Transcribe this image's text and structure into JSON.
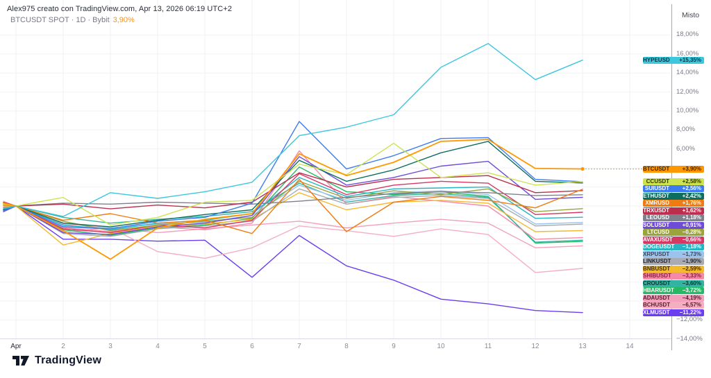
{
  "header": {
    "attribution": "Alex975 creato con TradingView.com, Apr 13, 2026 06:19 UTC+2",
    "symbol_line": "BTCUSDT SPOT · 1D · Bybit",
    "symbol_change": "3,90%"
  },
  "price_scale": {
    "mode_label": "Misto",
    "ticks": [
      {
        "label": "18,00%",
        "pct": 18
      },
      {
        "label": "16,00%",
        "pct": 16
      },
      {
        "label": "14,00%",
        "pct": 14
      },
      {
        "label": "12,00%",
        "pct": 12
      },
      {
        "label": "10,00%",
        "pct": 10
      },
      {
        "label": "8,00%",
        "pct": 8
      },
      {
        "label": "6,00%",
        "pct": 6
      },
      {
        "label": "−12,00%",
        "pct": -12
      },
      {
        "label": "−14,00%",
        "pct": -14
      }
    ]
  },
  "time_scale": {
    "labels": [
      {
        "label": "Apr",
        "day": 1,
        "emphasis": true
      },
      {
        "label": "2",
        "day": 2
      },
      {
        "label": "3",
        "day": 3
      },
      {
        "label": "4",
        "day": 4
      },
      {
        "label": "5",
        "day": 5
      },
      {
        "label": "6",
        "day": 6
      },
      {
        "label": "7",
        "day": 7
      },
      {
        "label": "8",
        "day": 8
      },
      {
        "label": "9",
        "day": 9
      },
      {
        "label": "10",
        "day": 10
      },
      {
        "label": "11",
        "day": 11
      },
      {
        "label": "12",
        "day": 12
      },
      {
        "label": "13",
        "day": 13
      },
      {
        "label": "14",
        "day": 14
      }
    ]
  },
  "footer": {
    "logo_text": "TradingView"
  },
  "chart_data": {
    "type": "line",
    "unit": "percent_change",
    "x_categories": [
      "Apr 1",
      "Apr 2",
      "Apr 3",
      "Apr 4",
      "Apr 5",
      "Apr 6",
      "Apr 7",
      "Apr 8",
      "Apr 9",
      "Apr 10",
      "Apr 11",
      "Apr 12",
      "Apr 13"
    ],
    "ylim": [
      -14,
      18
    ],
    "grid": true,
    "legend_position": "right-badges",
    "main_symbol": "BTCUSDT",
    "series": [
      {
        "name": "HYPEUSD",
        "change_label": "+15,35%",
        "end_pct": 15.35,
        "color": "#3bc7de",
        "text_color": "#06323b",
        "pre": -0.3,
        "values": [
          0,
          -1.1,
          1.4,
          0.8,
          1.5,
          2.5,
          7.4,
          8.3,
          9.6,
          14.6,
          17.1,
          13.3,
          15.35
        ]
      },
      {
        "name": "BTCUSDT",
        "change_label": "+3,90%",
        "end_pct": 3.9,
        "color": "#ff9800",
        "text_color": "#3a2500",
        "pre": 0.3,
        "values": [
          0,
          -2.6,
          -5.6,
          -2.3,
          -1.4,
          -0.8,
          5.5,
          3.2,
          4.6,
          6.8,
          7.0,
          3.95,
          3.9
        ]
      },
      {
        "name": "CCUSDT",
        "change_label": "+2,58%",
        "end_pct": 2.58,
        "color": "#cde34f",
        "text_color": "#2f3403",
        "pre": 0.2,
        "values": [
          0,
          0.9,
          -2.0,
          -1.2,
          0.4,
          0.6,
          4.4,
          3.3,
          6.6,
          3.0,
          3.5,
          2.2,
          2.58
        ]
      },
      {
        "name": "SUIUSDT",
        "change_label": "+2,56%",
        "end_pct": 2.56,
        "color": "#3d7bf0",
        "text_color": "#ffffff",
        "pre": -0.5,
        "values": [
          0,
          -2.2,
          -2.4,
          -1.6,
          -1.2,
          0.3,
          8.9,
          3.9,
          5.3,
          7.1,
          7.2,
          2.8,
          2.56
        ]
      },
      {
        "name": "ETHUSDT",
        "change_label": "+2,42%",
        "end_pct": 2.42,
        "color": "#0c6e5f",
        "text_color": "#ffffff",
        "pre": -0.4,
        "values": [
          0,
          -1.8,
          -2.2,
          -1.5,
          -0.9,
          -0.4,
          4.8,
          2.6,
          3.8,
          5.6,
          6.8,
          2.6,
          2.42
        ]
      },
      {
        "name": "XMRUSD",
        "change_label": "+1,76%",
        "end_pct": 1.76,
        "color": "#ef7c12",
        "text_color": "#ffffff",
        "pre": 0.1,
        "values": [
          0,
          -1.5,
          -0.8,
          -1.8,
          -1.5,
          -2.9,
          2.8,
          -2.7,
          0.4,
          1.0,
          0.6,
          -0.2,
          1.76
        ]
      },
      {
        "name": "TRXUSDT",
        "change_label": "+1,62%",
        "end_pct": 1.62,
        "color": "#bb2e4d",
        "text_color": "#ffffff",
        "pre": 0.4,
        "values": [
          0,
          0.2,
          -0.3,
          0.1,
          -0.2,
          0.4,
          3.5,
          2.0,
          2.8,
          3.0,
          3.2,
          1.4,
          1.62
        ]
      },
      {
        "name": "LEOUSD",
        "change_label": "+1,18%",
        "end_pct": 1.18,
        "color": "#7e818c",
        "text_color": "#ffffff",
        "pre": 0.1,
        "values": [
          0,
          0.3,
          0.2,
          0.4,
          0.3,
          0.2,
          0.5,
          0.9,
          1.3,
          1.5,
          1.4,
          1.1,
          1.18
        ]
      },
      {
        "name": "SOLUSDT",
        "change_label": "+0,91%",
        "end_pct": 0.91,
        "color": "#6f4bd8",
        "text_color": "#ffffff",
        "pre": -0.6,
        "values": [
          0,
          -2.8,
          -3.0,
          -2.2,
          -1.8,
          -1.0,
          5.2,
          2.2,
          3.0,
          4.2,
          4.7,
          0.7,
          0.91
        ]
      },
      {
        "name": "LTCUSD",
        "change_label": "−0,28%",
        "end_pct": -0.28,
        "color": "#9aa33c",
        "text_color": "#ffffff",
        "pre": -0.2,
        "values": [
          0,
          -1.6,
          -2.6,
          -2.0,
          -1.6,
          -1.2,
          2.6,
          0.8,
          1.6,
          1.2,
          1.8,
          -0.6,
          -0.28
        ]
      },
      {
        "name": "AVAXUSDT",
        "change_label": "−0,66%",
        "end_pct": -0.66,
        "color": "#d63864",
        "text_color": "#ffffff",
        "pre": -0.3,
        "values": [
          0,
          -2.4,
          -2.8,
          -2.0,
          -2.3,
          -1.5,
          3.4,
          1.2,
          2.2,
          2.6,
          2.4,
          -0.9,
          -0.66
        ]
      },
      {
        "name": "DOGEUSDT",
        "change_label": "−1,18%",
        "end_pct": -1.18,
        "color": "#27b5c4",
        "text_color": "#ffffff",
        "pre": -0.4,
        "values": [
          0,
          -2.0,
          -2.5,
          -1.8,
          -1.5,
          -0.8,
          3.0,
          1.0,
          1.8,
          1.9,
          2.0,
          -1.3,
          -1.18
        ]
      },
      {
        "name": "XRPUSDT",
        "change_label": "−1,73%",
        "end_pct": -1.73,
        "color": "#9cc3ee",
        "text_color": "#3c4754",
        "pre": -0.2,
        "values": [
          0,
          -2.1,
          -2.3,
          -1.9,
          -1.7,
          -1.0,
          2.2,
          0.6,
          1.4,
          1.6,
          1.2,
          -1.9,
          -1.73
        ]
      },
      {
        "name": "LINKUSDT",
        "change_label": "−1,90%",
        "end_pct": -1.9,
        "color": "#a8abb3",
        "text_color": "#26282e",
        "pre": -0.5,
        "values": [
          0,
          -2.9,
          -3.2,
          -2.4,
          -2.1,
          -1.6,
          1.8,
          0.2,
          0.9,
          1.1,
          0.8,
          -2.1,
          -1.9
        ]
      },
      {
        "name": "BNBUSDT",
        "change_label": "−2,59%",
        "end_pct": -2.59,
        "color": "#f3ba2f",
        "text_color": "#3d2c00",
        "pre": 0.0,
        "values": [
          0,
          -4.1,
          -2.9,
          -2.1,
          -1.9,
          -1.4,
          1.4,
          -0.4,
          0.4,
          0.6,
          0.3,
          -2.7,
          -2.59
        ]
      },
      {
        "name": "SHIBUSDT",
        "change_label": "−3,33%",
        "end_pct": -3.33,
        "color": "#f789a8",
        "text_color": "#8c1f3f",
        "pre": -0.1,
        "values": [
          0,
          -2.3,
          -2.7,
          -2.2,
          -2.5,
          -1.8,
          5.8,
          0.2,
          1.0,
          0.5,
          0.0,
          -3.5,
          -3.33
        ]
      },
      {
        "name": "CROUSDT",
        "change_label": "−3,60%",
        "end_pct": -3.6,
        "color": "#33b3a2",
        "text_color": "#07332d",
        "pre": 0.2,
        "values": [
          0,
          -1.2,
          -1.8,
          -1.4,
          -1.1,
          -0.6,
          2.4,
          0.4,
          1.1,
          1.3,
          0.9,
          -3.8,
          -3.6
        ]
      },
      {
        "name": "HBARUSDT",
        "change_label": "−3,72%",
        "end_pct": -3.72,
        "color": "#25b865",
        "text_color": "#ffffff",
        "pre": -0.3,
        "values": [
          0,
          -2.5,
          -3.1,
          -2.3,
          -2.0,
          -1.3,
          4.1,
          1.5,
          1.2,
          1.5,
          1.0,
          -3.9,
          -3.72
        ]
      },
      {
        "name": "ADAUSDT",
        "change_label": "−4,19%",
        "end_pct": -4.19,
        "color": "#f2a0bb",
        "text_color": "#59182e",
        "pre": -0.2,
        "values": [
          0,
          -2.7,
          -2.3,
          -2.8,
          -2.4,
          -2.0,
          -1.6,
          -2.3,
          -1.8,
          -1.4,
          -1.8,
          -4.4,
          -4.19
        ]
      },
      {
        "name": "BCHUSDT",
        "change_label": "−6,57%",
        "end_pct": -6.57,
        "color": "#f5aec0",
        "text_color": "#59182e",
        "pre": 0.5,
        "values": [
          0,
          -1.9,
          -2.3,
          -4.8,
          -5.5,
          -4.4,
          -2.1,
          -2.6,
          -3.2,
          -2.4,
          -3.0,
          -7.0,
          -6.57
        ]
      },
      {
        "name": "XLMUSDT",
        "change_label": "−11,22%",
        "end_pct": -11.22,
        "color": "#6a3df0",
        "text_color": "#ffffff",
        "pre": -0.4,
        "values": [
          0,
          -3.5,
          -3.5,
          -3.7,
          -3.6,
          -7.5,
          -3.1,
          -6.3,
          -7.8,
          -9.8,
          -10.3,
          -11.0,
          -11.22
        ]
      }
    ]
  }
}
